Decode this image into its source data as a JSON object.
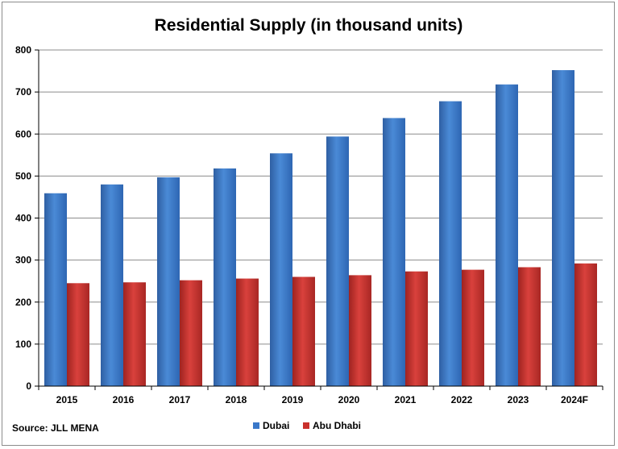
{
  "chart_data": {
    "type": "bar",
    "title": "Residential Supply (in thousand units)",
    "categories": [
      "2015",
      "2016",
      "2017",
      "2018",
      "2019",
      "2020",
      "2021",
      "2022",
      "2023",
      "2024F"
    ],
    "series": [
      {
        "name": "Dubai",
        "values": [
          459,
          480,
          497,
          518,
          554,
          594,
          638,
          678,
          718,
          752
        ],
        "color": "#3a78c9"
      },
      {
        "name": "Abu Dhabi",
        "values": [
          245,
          247,
          252,
          256,
          260,
          264,
          273,
          277,
          283,
          292
        ],
        "color": "#c9302c"
      }
    ],
    "ylim": [
      0,
      800
    ],
    "yticks": [
      0,
      100,
      200,
      300,
      400,
      500,
      600,
      700,
      800
    ],
    "grid": true,
    "legend": "bottom-center"
  },
  "source": "Source: JLL MENA"
}
